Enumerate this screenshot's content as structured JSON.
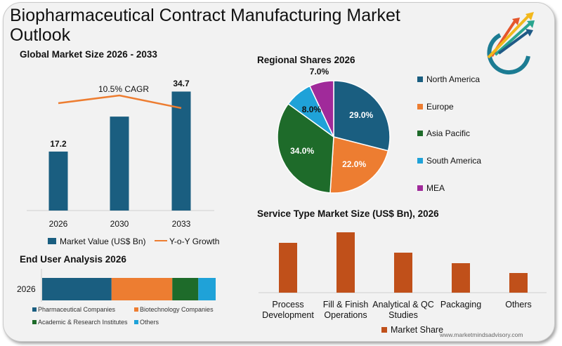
{
  "title": "Biopharmaceutical Contract Manufacturing Market Outlook",
  "footer_url": "www.marketmindsadvisory.com",
  "colors": {
    "dark_blue": "#1a5e80",
    "orange": "#ed7d31",
    "green": "#1e6b2a",
    "light_blue": "#1fa2d8",
    "purple": "#a02a9a",
    "rust": "#c0501a",
    "background": "#f2f2f2"
  },
  "logo": {
    "icon": "colored-arrows-logo"
  },
  "chart_data": [
    {
      "type": "bar",
      "title": "Global Market Size 2026 - 2033",
      "categories": [
        "2026",
        "2030",
        "2033"
      ],
      "series": [
        {
          "name": "Market Value (US$ Bn)",
          "values": [
            17.2,
            27.4,
            34.7
          ],
          "data_labels": [
            "17.2",
            "",
            "34.7"
          ]
        },
        {
          "name": "Y-o-Y Growth",
          "type": "line",
          "values": [
            null,
            null,
            null
          ]
        }
      ],
      "annotation": "10.5% CAGR",
      "ylim": [
        0,
        40
      ]
    },
    {
      "type": "pie",
      "title": "Regional Shares 2026",
      "labels": [
        "North America",
        "Europe",
        "Asia Pacific",
        "South America",
        "MEA"
      ],
      "values": [
        29.0,
        22.0,
        34.0,
        8.0,
        7.0
      ],
      "data_labels": [
        "29.0%",
        "22.0%",
        "34.0%",
        "8.0%",
        "7.0%"
      ],
      "legend": "right"
    },
    {
      "type": "bar",
      "orientation": "horizontal-stacked",
      "title": "End User Analysis 2026",
      "categories": [
        "2026"
      ],
      "series": [
        {
          "name": "Pharmaceutical Companies",
          "values": [
            40
          ]
        },
        {
          "name": "Biotechnology Companies",
          "values": [
            35
          ]
        },
        {
          "name": "Academic & Research Institutes",
          "values": [
            15
          ]
        },
        {
          "name": "Others",
          "values": [
            10
          ]
        }
      ],
      "legend": "bottom"
    },
    {
      "type": "bar",
      "title": "Service Type Market Size (US$ Bn), 2026",
      "categories": [
        "Process Development",
        "Fill & Finish Operations",
        "Analytical & QC Studies",
        "Packaging",
        "Others"
      ],
      "category_lines": [
        [
          "Process",
          "Development"
        ],
        [
          "Fill & Finish",
          "Operations"
        ],
        [
          "Analytical & QC",
          "Studies"
        ],
        [
          "Packaging"
        ],
        [
          "Others"
        ]
      ],
      "series": [
        {
          "name": "Market Share",
          "values": [
            71,
            86,
            57,
            42,
            28
          ]
        }
      ],
      "legend": "bottom"
    }
  ]
}
